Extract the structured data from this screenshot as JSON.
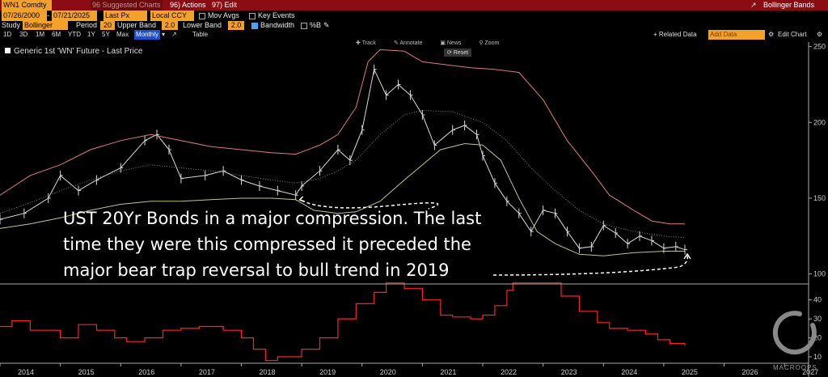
{
  "toolbar": {
    "ticker": "WN1 Comdty",
    "suggested": "96 Suggested Charts",
    "actions": "96) Actions",
    "edit": "97) Edit",
    "title_right": "Bollinger Bands",
    "start_date": "07/26/2000",
    "end_date": "07/21/2025",
    "price_field": "Last Px",
    "currency": "Local CCY",
    "mov_avgs": "Mov Avgs",
    "key_events": "Key Events",
    "study_label": "Study",
    "study_value": "Bollinger",
    "period_label": "Period",
    "period_value": "20",
    "upper_label": "Upper Band",
    "upper_value": "2.0",
    "lower_label": "Lower Band",
    "lower_value": "2.0",
    "bandwidth": "Bandwidth",
    "pct_b": "%B",
    "ranges": [
      "1D",
      "3D",
      "1M",
      "6M",
      "YTD",
      "1Y",
      "5Y",
      "Max"
    ],
    "frequency": "Monthly",
    "table": "Table",
    "related": "+ Related Data",
    "add_data": "Add Data",
    "edit_chart": "Edit Chart"
  },
  "menu": {
    "track": "Track",
    "annotate": "Annotate",
    "news": "News",
    "zoom": "Zoom",
    "reset": "Reset"
  },
  "legend": "Generic 1st 'WN' Future - Last Price",
  "annotation": [
    "UST 20Yr Bonds in a major compression. The last",
    "time they were this compressed it preceded the",
    "major bear trap reversal to bull trend in 2019"
  ],
  "watermark": "MACROOPS",
  "colors": {
    "price": "#d9d9d9",
    "upper": "#e27a7a",
    "lower": "#b8c98a",
    "middle": "#9a9a9a",
    "bandwidth": "#ff2222",
    "topbar": "#8b0c12",
    "field": "#f2a22b"
  },
  "chart_data": [
    {
      "type": "line",
      "title": "Generic 1st 'WN' Future - Last Price",
      "x_ticks": [
        "2014",
        "2015",
        "2016",
        "2017",
        "2018",
        "2019",
        "2020",
        "2021",
        "2022",
        "2023",
        "2024",
        "2025",
        "2026",
        "2027"
      ],
      "y_ticks": [
        100,
        150,
        200,
        250
      ],
      "ylim": [
        95,
        253
      ],
      "xlim": [
        2014.0,
        2027.4
      ],
      "grid": false,
      "series": [
        {
          "name": "Price",
          "values": [
            [
              2014.0,
              136
            ],
            [
              2014.4,
              140
            ],
            [
              2014.8,
              150
            ],
            [
              2015.0,
              165
            ],
            [
              2015.3,
              155
            ],
            [
              2015.6,
              162
            ],
            [
              2016.0,
              170
            ],
            [
              2016.4,
              188
            ],
            [
              2016.6,
              192
            ],
            [
              2016.8,
              182
            ],
            [
              2017.0,
              163
            ],
            [
              2017.4,
              165
            ],
            [
              2017.7,
              168
            ],
            [
              2018.0,
              162
            ],
            [
              2018.3,
              158
            ],
            [
              2018.6,
              155
            ],
            [
              2018.9,
              152
            ],
            [
              2019.0,
              158
            ],
            [
              2019.3,
              168
            ],
            [
              2019.6,
              182
            ],
            [
              2019.8,
              175
            ],
            [
              2020.0,
              195
            ],
            [
              2020.2,
              235
            ],
            [
              2020.4,
              218
            ],
            [
              2020.6,
              225
            ],
            [
              2020.8,
              218
            ],
            [
              2021.0,
              205
            ],
            [
              2021.2,
              185
            ],
            [
              2021.5,
              195
            ],
            [
              2021.7,
              198
            ],
            [
              2021.9,
              192
            ],
            [
              2022.0,
              178
            ],
            [
              2022.2,
              160
            ],
            [
              2022.4,
              148
            ],
            [
              2022.6,
              140
            ],
            [
              2022.8,
              128
            ],
            [
              2023.0,
              142
            ],
            [
              2023.2,
              140
            ],
            [
              2023.4,
              128
            ],
            [
              2023.6,
              117
            ],
            [
              2023.8,
              118
            ],
            [
              2024.0,
              132
            ],
            [
              2024.2,
              127
            ],
            [
              2024.4,
              120
            ],
            [
              2024.6,
              125
            ],
            [
              2024.8,
              122
            ],
            [
              2025.0,
              117
            ],
            [
              2025.2,
              118
            ],
            [
              2025.35,
              116
            ]
          ]
        },
        {
          "name": "Upper Band",
          "values": [
            [
              2014.0,
              152
            ],
            [
              2014.5,
              165
            ],
            [
              2015.0,
              172
            ],
            [
              2015.5,
              182
            ],
            [
              2016.0,
              188
            ],
            [
              2016.5,
              192
            ],
            [
              2017.0,
              188
            ],
            [
              2017.5,
              184
            ],
            [
              2018.0,
              182
            ],
            [
              2018.5,
              180
            ],
            [
              2018.9,
              179
            ],
            [
              2019.3,
              185
            ],
            [
              2019.6,
              192
            ],
            [
              2019.9,
              210
            ],
            [
              2020.1,
              240
            ],
            [
              2020.3,
              248
            ],
            [
              2020.7,
              247
            ],
            [
              2021.0,
              240
            ],
            [
              2021.4,
              238
            ],
            [
              2021.8,
              236
            ],
            [
              2022.2,
              235
            ],
            [
              2022.6,
              233
            ],
            [
              2023.0,
              215
            ],
            [
              2023.4,
              188
            ],
            [
              2023.8,
              168
            ],
            [
              2024.1,
              152
            ],
            [
              2024.5,
              142
            ],
            [
              2024.8,
              135
            ],
            [
              2025.1,
              133
            ],
            [
              2025.35,
              133
            ]
          ]
        },
        {
          "name": "Middle Band",
          "values": [
            [
              2014.0,
              140
            ],
            [
              2014.5,
              147
            ],
            [
              2015.0,
              155
            ],
            [
              2015.5,
              162
            ],
            [
              2016.0,
              168
            ],
            [
              2016.5,
              172
            ],
            [
              2017.0,
              170
            ],
            [
              2017.5,
              168
            ],
            [
              2018.0,
              165
            ],
            [
              2018.5,
              162
            ],
            [
              2018.9,
              160
            ],
            [
              2019.3,
              163
            ],
            [
              2019.6,
              168
            ],
            [
              2019.9,
              175
            ],
            [
              2020.3,
              192
            ],
            [
              2020.7,
              205
            ],
            [
              2021.0,
              208
            ],
            [
              2021.5,
              207
            ],
            [
              2022.0,
              200
            ],
            [
              2022.4,
              188
            ],
            [
              2022.8,
              170
            ],
            [
              2023.2,
              155
            ],
            [
              2023.6,
              142
            ],
            [
              2024.0,
              133
            ],
            [
              2024.5,
              128
            ],
            [
              2025.0,
              125
            ],
            [
              2025.35,
              124
            ]
          ]
        },
        {
          "name": "Lower Band",
          "values": [
            [
              2014.0,
              130
            ],
            [
              2014.5,
              133
            ],
            [
              2015.0,
              137
            ],
            [
              2015.5,
              142
            ],
            [
              2016.0,
              146
            ],
            [
              2016.5,
              148
            ],
            [
              2017.0,
              148
            ],
            [
              2017.5,
              149
            ],
            [
              2018.0,
              150
            ],
            [
              2018.5,
              150
            ],
            [
              2018.9,
              149
            ],
            [
              2019.2,
              142
            ],
            [
              2019.6,
              140
            ],
            [
              2019.9,
              141
            ],
            [
              2020.3,
              148
            ],
            [
              2020.7,
              162
            ],
            [
              2021.0,
              172
            ],
            [
              2021.3,
              182
            ],
            [
              2021.7,
              186
            ],
            [
              2022.0,
              185
            ],
            [
              2022.3,
              175
            ],
            [
              2022.6,
              150
            ],
            [
              2022.9,
              128
            ],
            [
              2023.2,
              120
            ],
            [
              2023.6,
              113
            ],
            [
              2024.0,
              112
            ],
            [
              2024.5,
              114
            ],
            [
              2025.0,
              115
            ],
            [
              2025.35,
              115
            ]
          ]
        }
      ]
    },
    {
      "type": "line",
      "title": "Bandwidth",
      "y_ticks": [
        10,
        20,
        30,
        40
      ],
      "ylim": [
        7,
        48
      ],
      "grid": false,
      "series": [
        {
          "name": "Bandwidth",
          "values": [
            [
              2014.0,
              26
            ],
            [
              2014.2,
              29
            ],
            [
              2014.5,
              24
            ],
            [
              2015.0,
              20
            ],
            [
              2015.3,
              27
            ],
            [
              2015.6,
              24
            ],
            [
              2015.9,
              20
            ],
            [
              2016.1,
              18
            ],
            [
              2016.4,
              20
            ],
            [
              2016.7,
              24
            ],
            [
              2017.0,
              25
            ],
            [
              2017.3,
              26
            ],
            [
              2017.7,
              24
            ],
            [
              2018.0,
              20
            ],
            [
              2018.2,
              14
            ],
            [
              2018.4,
              8
            ],
            [
              2018.6,
              10
            ],
            [
              2018.8,
              10
            ],
            [
              2019.0,
              14
            ],
            [
              2019.3,
              20
            ],
            [
              2019.6,
              30
            ],
            [
              2019.9,
              38
            ],
            [
              2020.2,
              44
            ],
            [
              2020.4,
              49
            ],
            [
              2020.7,
              46
            ],
            [
              2021.0,
              40
            ],
            [
              2021.3,
              32
            ],
            [
              2021.5,
              31
            ],
            [
              2021.8,
              30
            ],
            [
              2022.0,
              32
            ],
            [
              2022.2,
              37
            ],
            [
              2022.4,
              45
            ],
            [
              2022.5,
              49
            ],
            [
              2023.0,
              49
            ],
            [
              2023.3,
              42
            ],
            [
              2023.6,
              34
            ],
            [
              2023.9,
              28
            ],
            [
              2024.1,
              25
            ],
            [
              2024.4,
              24
            ],
            [
              2024.7,
              22
            ],
            [
              2024.9,
              19
            ],
            [
              2025.1,
              17
            ],
            [
              2025.35,
              16
            ]
          ]
        }
      ]
    }
  ]
}
